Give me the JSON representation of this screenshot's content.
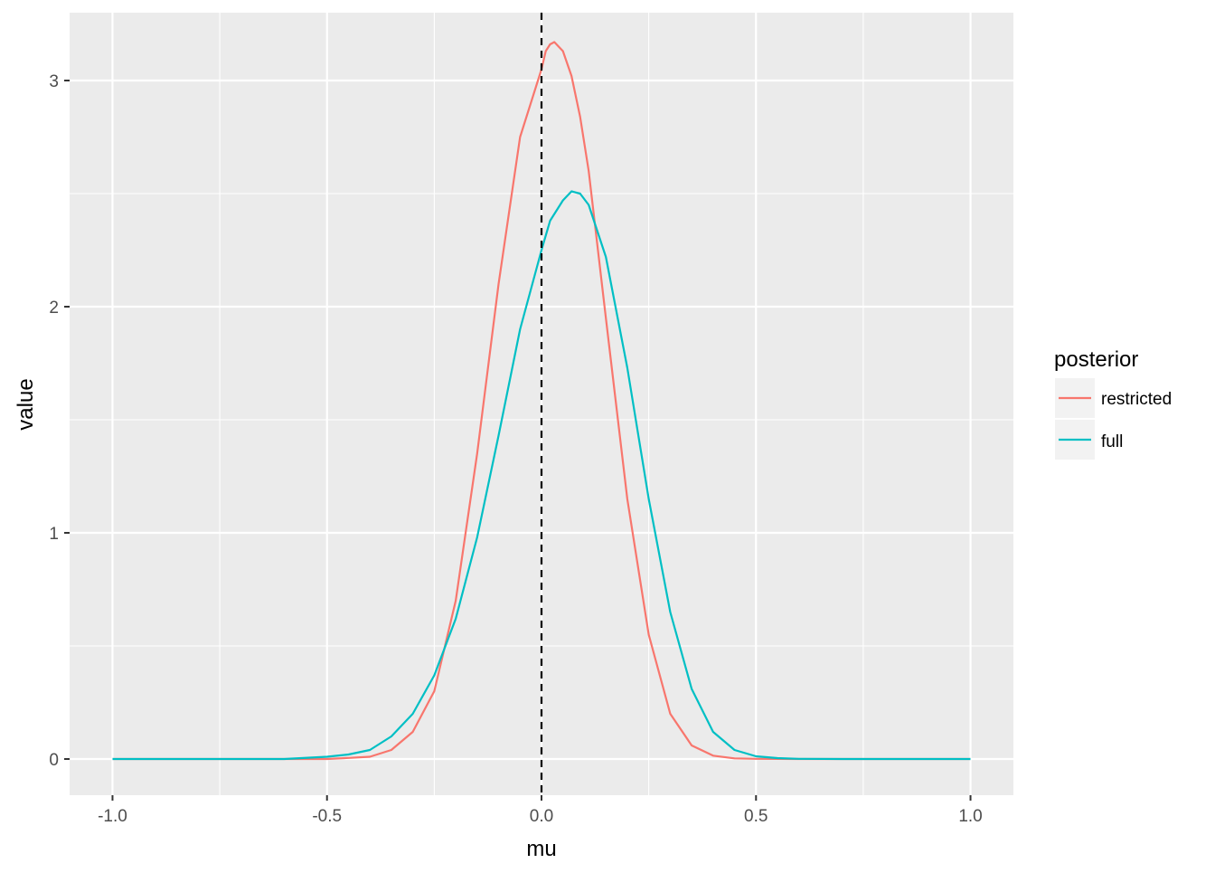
{
  "chart_data": {
    "type": "line",
    "xlabel": "mu",
    "ylabel": "value",
    "xlim": [
      -1.1,
      1.1
    ],
    "ylim": [
      -0.16,
      3.3
    ],
    "x_ticks": [
      -1.0,
      -0.5,
      0.0,
      0.5,
      1.0
    ],
    "x_tick_labels": [
      "-1.0",
      "-0.5",
      "0.0",
      "0.5",
      "1.0"
    ],
    "y_ticks": [
      0,
      1,
      2,
      3
    ],
    "y_tick_labels": [
      "0",
      "1",
      "2",
      "3"
    ],
    "grid": true,
    "legend": {
      "title": "posterior",
      "position": "right",
      "entries": [
        {
          "label": "restricted",
          "color": "#F8766D"
        },
        {
          "label": "full",
          "color": "#00BFC4"
        }
      ]
    },
    "reference_line": {
      "x": 0.0,
      "style": "dashed",
      "color": "#000000"
    },
    "series": [
      {
        "name": "restricted",
        "color": "#F8766D",
        "x": [
          -1.0,
          -0.9,
          -0.8,
          -0.7,
          -0.6,
          -0.5,
          -0.45,
          -0.4,
          -0.35,
          -0.3,
          -0.25,
          -0.2,
          -0.15,
          -0.1,
          -0.05,
          0.0,
          0.01,
          0.02,
          0.03,
          0.05,
          0.07,
          0.09,
          0.11,
          0.15,
          0.2,
          0.25,
          0.3,
          0.35,
          0.4,
          0.45,
          0.5,
          0.6,
          0.7,
          0.8,
          0.9,
          1.0
        ],
        "y": [
          0.0,
          0.0,
          0.0,
          0.0,
          0.0,
          0.0,
          0.005,
          0.01,
          0.04,
          0.12,
          0.3,
          0.7,
          1.35,
          2.1,
          2.75,
          3.05,
          3.13,
          3.16,
          3.17,
          3.13,
          3.02,
          2.84,
          2.6,
          1.95,
          1.15,
          0.55,
          0.2,
          0.06,
          0.015,
          0.003,
          0.001,
          0.0,
          0.0,
          0.0,
          0.0,
          0.0
        ]
      },
      {
        "name": "full",
        "color": "#00BFC4",
        "x": [
          -1.0,
          -0.9,
          -0.8,
          -0.7,
          -0.6,
          -0.5,
          -0.45,
          -0.4,
          -0.35,
          -0.3,
          -0.25,
          -0.2,
          -0.15,
          -0.1,
          -0.05,
          0.0,
          0.02,
          0.05,
          0.07,
          0.09,
          0.11,
          0.15,
          0.2,
          0.25,
          0.3,
          0.35,
          0.4,
          0.45,
          0.5,
          0.55,
          0.6,
          0.7,
          0.8,
          0.9,
          1.0
        ],
        "y": [
          0.0,
          0.0,
          0.0,
          0.0,
          0.0,
          0.01,
          0.02,
          0.04,
          0.1,
          0.2,
          0.37,
          0.62,
          0.98,
          1.43,
          1.9,
          2.25,
          2.38,
          2.47,
          2.51,
          2.5,
          2.45,
          2.22,
          1.73,
          1.15,
          0.65,
          0.31,
          0.12,
          0.04,
          0.012,
          0.004,
          0.001,
          0.0,
          0.0,
          0.0,
          0.0
        ]
      }
    ]
  }
}
